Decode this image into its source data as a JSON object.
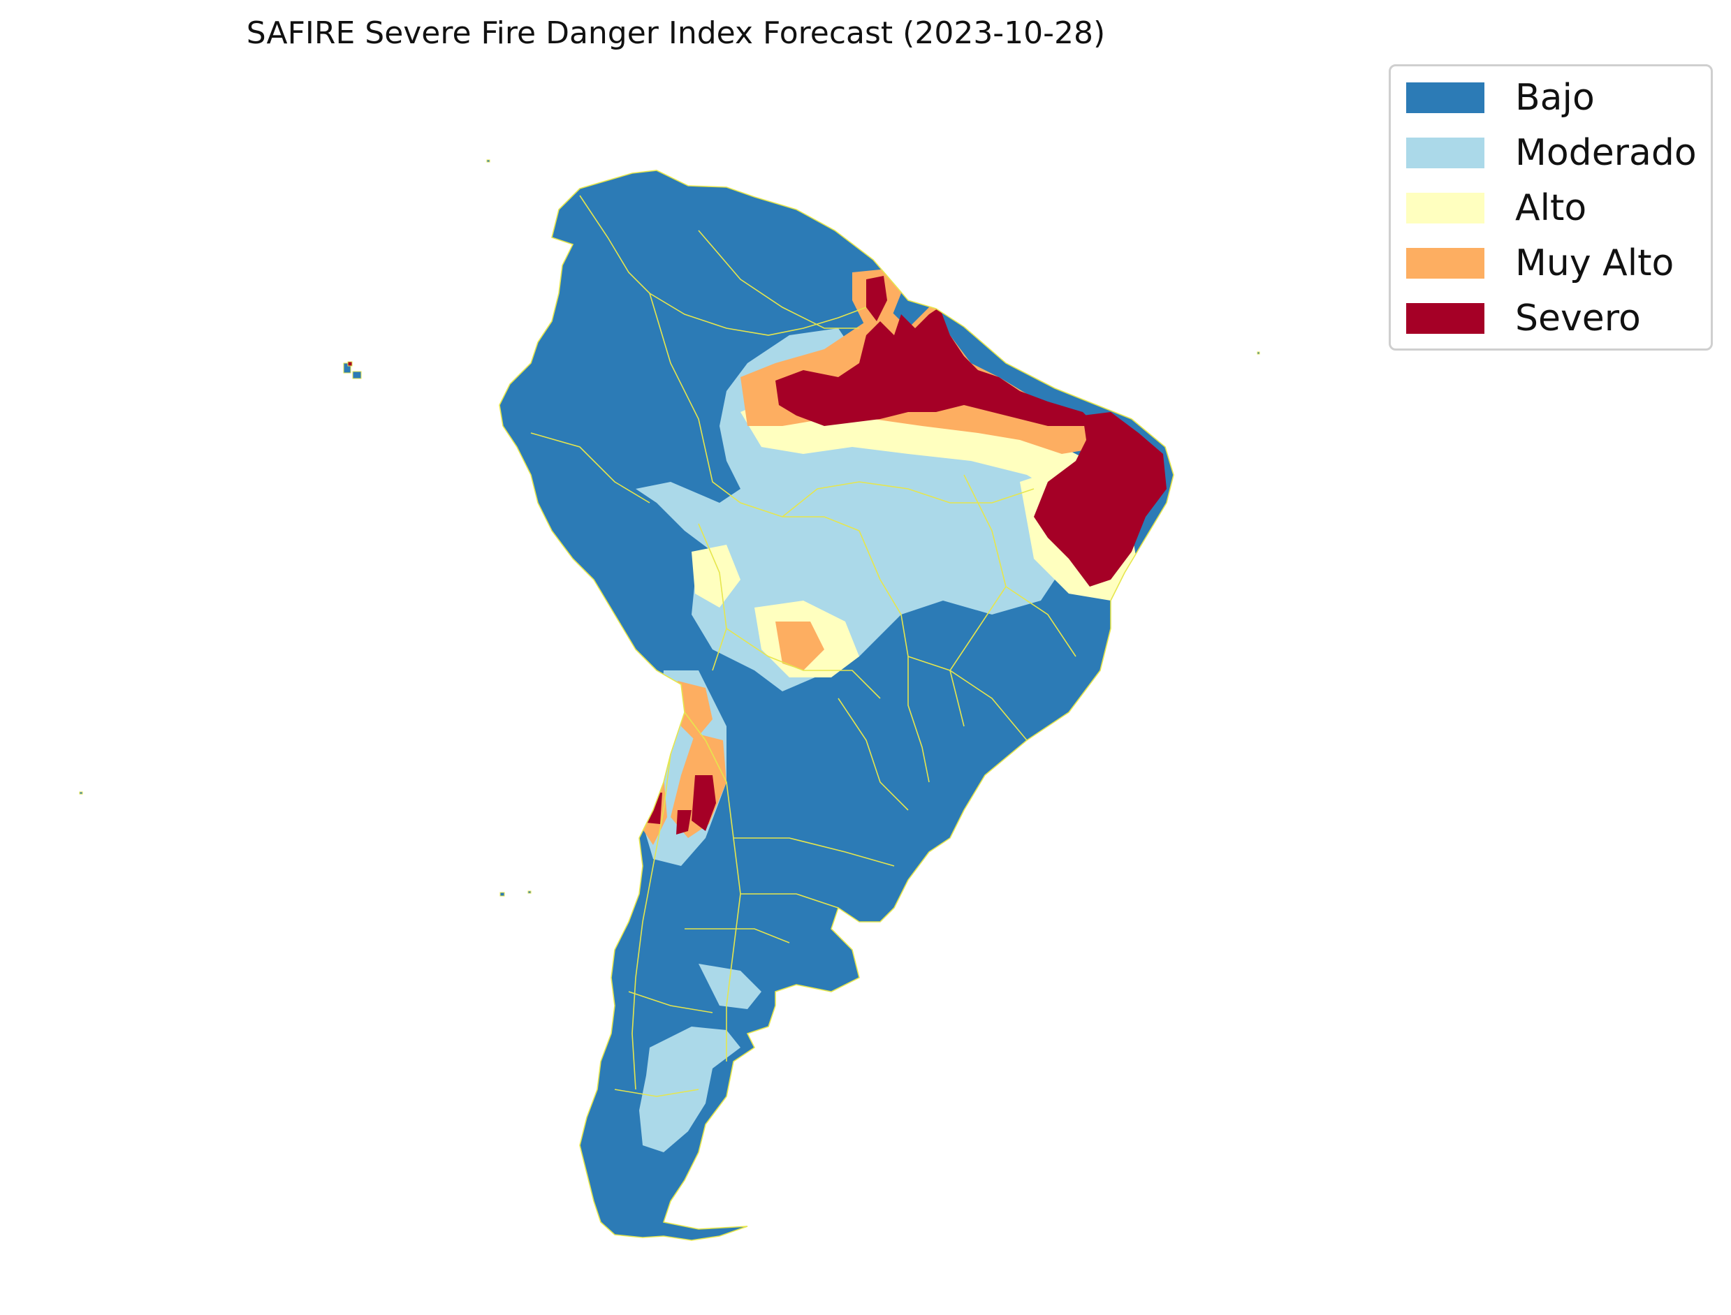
{
  "title": "SAFIRE Severe Fire Danger Index Forecast (2023-10-28)",
  "colors": {
    "bajo": "#2c7bb6",
    "moderado": "#abd9e9",
    "alto": "#ffffbf",
    "muy_alto": "#fdae61",
    "severo": "#a50026",
    "borders": "#e6e64d"
  },
  "legend": {
    "items": [
      {
        "label": "Bajo",
        "color": "#2c7bb6"
      },
      {
        "label": "Moderado",
        "color": "#abd9e9"
      },
      {
        "label": "Alto",
        "color": "#ffffbf"
      },
      {
        "label": "Muy Alto",
        "color": "#fdae61"
      },
      {
        "label": "Severo",
        "color": "#a50026"
      }
    ]
  }
}
